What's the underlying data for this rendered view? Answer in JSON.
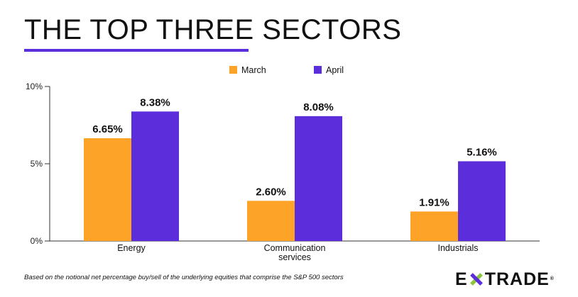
{
  "title": "THE TOP THREE SECTORS",
  "colors": {
    "march": "#fda428",
    "april": "#5c2ddb",
    "accent": "#5c2ddb",
    "logo_star_green": "#8cc63f",
    "logo_star_purple": "#5c2ddb"
  },
  "chart_data": {
    "type": "bar",
    "title": "THE TOP THREE SECTORS",
    "categories": [
      "Energy",
      "Communication services",
      "Industrials"
    ],
    "category_label_lines": [
      [
        "Energy"
      ],
      [
        "Communication",
        "services"
      ],
      [
        "Industrials"
      ]
    ],
    "series": [
      {
        "name": "March",
        "values": [
          6.65,
          2.6,
          1.91
        ],
        "labels": [
          "6.65%",
          "2.60%",
          "1.91%"
        ]
      },
      {
        "name": "April",
        "values": [
          8.38,
          8.08,
          5.16
        ],
        "labels": [
          "8.38%",
          "8.08%",
          "5.16%"
        ]
      }
    ],
    "yticks": [
      0,
      5,
      10
    ],
    "ytick_labels": [
      "0%",
      "5%",
      "10%"
    ],
    "ylim": [
      0,
      10
    ],
    "xlabel": "",
    "ylabel": "",
    "legend": "top-center",
    "grid": false
  },
  "footnote": "Based on the notional net percentage buy/sell of the underlying equities that comprise the S&P 500 sectors",
  "logo": {
    "text_before": "E",
    "text_after": "TRADE",
    "registered": "®",
    "icon": "etrade-star-icon"
  }
}
